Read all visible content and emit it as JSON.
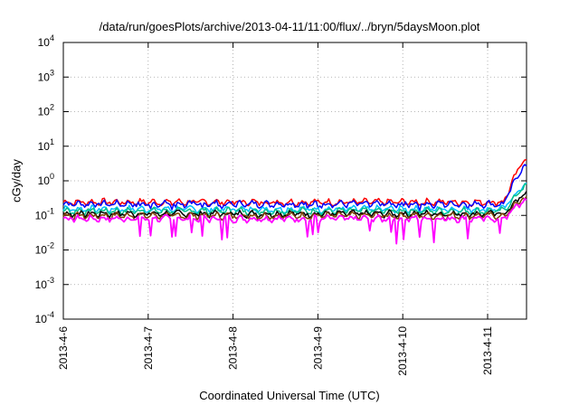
{
  "chart_data": {
    "type": "line",
    "title": "/data/run/goesPlots/archive/2013-04-11/11:00/flux/../bryn/5daysMoon.plot",
    "xlabel": "Coordinated Universal Time (UTC)",
    "ylabel": "cGy/day",
    "x_tick_labels": [
      "2013-4-6",
      "2013-4-7",
      "2013-4-8",
      "2013-4-9",
      "2013-4-10",
      "2013-4-11"
    ],
    "x_range": [
      "2013-04-06T00:00",
      "2013-04-11T11:00"
    ],
    "y_scale": "log",
    "y_range": [
      0.0001,
      10000
    ],
    "y_ticks": [
      {
        "base": "10",
        "exp": "-4"
      },
      {
        "base": "10",
        "exp": "-3"
      },
      {
        "base": "10",
        "exp": "-2"
      },
      {
        "base": "10",
        "exp": "-1"
      },
      {
        "base": "10",
        "exp": "0"
      },
      {
        "base": "10",
        "exp": "1"
      },
      {
        "base": "10",
        "exp": "2"
      },
      {
        "base": "10",
        "exp": "3"
      },
      {
        "base": "10",
        "exp": "4"
      }
    ],
    "grid": true,
    "legend": "none",
    "series": [
      {
        "color": "#ff0000",
        "baseline": 0.27,
        "end_value": 4.5
      },
      {
        "color": "#0000ff",
        "baseline": 0.24,
        "end_value": 3.0
      },
      {
        "color": "#00bfff",
        "baseline": 0.17,
        "end_value": 0.85
      },
      {
        "color": "#00c08a",
        "baseline": 0.15,
        "end_value": 0.75
      },
      {
        "color": "#000000",
        "baseline": 0.125,
        "end_value": 0.45
      },
      {
        "color": "#7f3f00",
        "baseline": 0.11,
        "end_value": 0.35
      },
      {
        "color": "#ff00ff",
        "baseline": 0.09,
        "end_value": 0.3
      }
    ]
  }
}
